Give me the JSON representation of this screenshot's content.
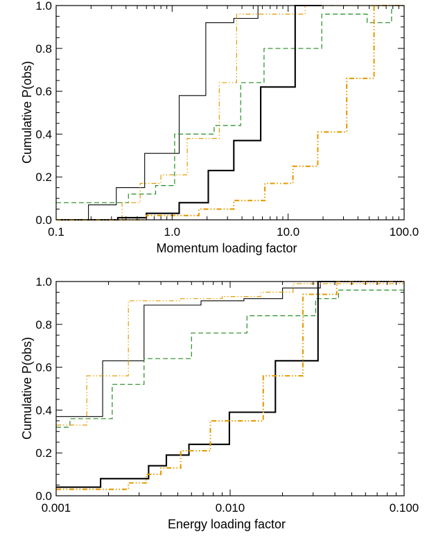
{
  "chart_data": [
    {
      "type": "line",
      "step": true,
      "xscale": "log",
      "xlabel": "Momentum loading factor",
      "ylabel": "Cumulative P(obs)",
      "xlim": [
        0.1,
        100.0
      ],
      "ylim": [
        0.0,
        1.0
      ],
      "x_tick_labels": [
        "0.1",
        "1.0",
        "10.0",
        "100.0"
      ],
      "y_tick_labels": [
        "0.0",
        "0.2",
        "0.4",
        "0.6",
        "0.8",
        "1.0"
      ],
      "series": [
        {
          "style": "thin-solid",
          "color": "#000000",
          "points": [
            [
              0.1,
              0.0
            ],
            [
              0.19,
              0.0
            ],
            [
              0.19,
              0.07
            ],
            [
              0.33,
              0.07
            ],
            [
              0.33,
              0.15
            ],
            [
              0.58,
              0.15
            ],
            [
              0.58,
              0.31
            ],
            [
              1.15,
              0.31
            ],
            [
              1.15,
              0.58
            ],
            [
              1.95,
              0.58
            ],
            [
              1.95,
              0.92
            ],
            [
              3.4,
              0.92
            ],
            [
              3.4,
              0.94
            ],
            [
              5.5,
              0.94
            ],
            [
              5.5,
              1.0
            ],
            [
              100,
              1.0
            ]
          ]
        },
        {
          "style": "dashed",
          "color": "#228b22",
          "points": [
            [
              0.1,
              0.08
            ],
            [
              0.42,
              0.08
            ],
            [
              0.42,
              0.12
            ],
            [
              0.72,
              0.12
            ],
            [
              0.72,
              0.16
            ],
            [
              1.05,
              0.16
            ],
            [
              1.05,
              0.4
            ],
            [
              2.3,
              0.4
            ],
            [
              2.3,
              0.44
            ],
            [
              3.9,
              0.44
            ],
            [
              3.9,
              0.64
            ],
            [
              6.2,
              0.64
            ],
            [
              6.2,
              0.8
            ],
            [
              19.5,
              0.8
            ],
            [
              19.5,
              0.96
            ],
            [
              48,
              0.96
            ],
            [
              48,
              0.92
            ],
            [
              78,
              0.92
            ],
            [
              78,
              1.0
            ],
            [
              100,
              1.0
            ]
          ]
        },
        {
          "style": "thin-dash-dot-dot",
          "color": "#e69a00",
          "points": [
            [
              0.1,
              0.0
            ],
            [
              0.37,
              0.0
            ],
            [
              0.37,
              0.08
            ],
            [
              0.53,
              0.08
            ],
            [
              0.53,
              0.17
            ],
            [
              0.8,
              0.17
            ],
            [
              0.8,
              0.21
            ],
            [
              1.35,
              0.21
            ],
            [
              1.35,
              0.38
            ],
            [
              2.55,
              0.38
            ],
            [
              2.55,
              0.64
            ],
            [
              3.6,
              0.64
            ],
            [
              3.6,
              0.96
            ],
            [
              14,
              0.96
            ],
            [
              14,
              1.0
            ],
            [
              100,
              1.0
            ]
          ]
        },
        {
          "style": "thick-solid",
          "color": "#000000",
          "points": [
            [
              0.1,
              0.0
            ],
            [
              0.34,
              0.0
            ],
            [
              0.34,
              0.01
            ],
            [
              0.6,
              0.01
            ],
            [
              0.6,
              0.03
            ],
            [
              1.15,
              0.03
            ],
            [
              1.15,
              0.08
            ],
            [
              2.05,
              0.08
            ],
            [
              2.05,
              0.23
            ],
            [
              3.4,
              0.23
            ],
            [
              3.4,
              0.37
            ],
            [
              5.8,
              0.37
            ],
            [
              5.8,
              0.62
            ],
            [
              11.5,
              0.62
            ],
            [
              11.5,
              1.0
            ],
            [
              19.5,
              1.0
            ]
          ]
        },
        {
          "style": "thick-dash-dot-dot",
          "color": "#e69a00",
          "points": [
            [
              0.1,
              0.0
            ],
            [
              0.6,
              0.0
            ],
            [
              0.6,
              0.02
            ],
            [
              1.7,
              0.02
            ],
            [
              1.7,
              0.05
            ],
            [
              3.4,
              0.05
            ],
            [
              3.4,
              0.09
            ],
            [
              6.3,
              0.09
            ],
            [
              6.3,
              0.17
            ],
            [
              11,
              0.17
            ],
            [
              11,
              0.25
            ],
            [
              18,
              0.25
            ],
            [
              18,
              0.41
            ],
            [
              32,
              0.41
            ],
            [
              32,
              0.66
            ],
            [
              55,
              0.66
            ],
            [
              55,
              1.0
            ],
            [
              100,
              1.0
            ]
          ]
        }
      ]
    },
    {
      "type": "line",
      "step": true,
      "xscale": "log",
      "xlabel": "Energy loading factor",
      "ylabel": "Cumulative P(obs)",
      "xlim": [
        0.001,
        0.1
      ],
      "ylim": [
        0.0,
        1.0
      ],
      "x_tick_labels": [
        "0.001",
        "0.010",
        "0.100"
      ],
      "y_tick_labels": [
        "0.0",
        "0.2",
        "0.4",
        "0.6",
        "0.8",
        "1.0"
      ],
      "series": [
        {
          "style": "thin-solid",
          "color": "#000000",
          "points": [
            [
              0.001,
              0.37
            ],
            [
              0.00185,
              0.37
            ],
            [
              0.00185,
              0.63
            ],
            [
              0.0032,
              0.63
            ],
            [
              0.0032,
              0.89
            ],
            [
              0.0068,
              0.89
            ],
            [
              0.0068,
              0.91
            ],
            [
              0.012,
              0.91
            ],
            [
              0.012,
              0.92
            ],
            [
              0.02,
              0.92
            ],
            [
              0.02,
              0.97
            ],
            [
              0.033,
              0.97
            ],
            [
              0.033,
              1.0
            ],
            [
              0.1,
              1.0
            ]
          ]
        },
        {
          "style": "dashed",
          "color": "#228b22",
          "points": [
            [
              0.001,
              0.32
            ],
            [
              0.0012,
              0.32
            ],
            [
              0.0012,
              0.36
            ],
            [
              0.0021,
              0.36
            ],
            [
              0.0021,
              0.52
            ],
            [
              0.0032,
              0.52
            ],
            [
              0.0032,
              0.64
            ],
            [
              0.006,
              0.64
            ],
            [
              0.006,
              0.76
            ],
            [
              0.0125,
              0.76
            ],
            [
              0.0125,
              0.84
            ],
            [
              0.031,
              0.84
            ],
            [
              0.031,
              0.92
            ],
            [
              0.042,
              0.92
            ],
            [
              0.042,
              0.96
            ],
            [
              0.1,
              0.96
            ]
          ]
        },
        {
          "style": "thin-dash-dot-dot",
          "color": "#e69a00",
          "points": [
            [
              0.001,
              0.33
            ],
            [
              0.0015,
              0.33
            ],
            [
              0.0015,
              0.56
            ],
            [
              0.0026,
              0.56
            ],
            [
              0.0026,
              0.91
            ],
            [
              0.0052,
              0.91
            ],
            [
              0.0052,
              0.92
            ],
            [
              0.009,
              0.92
            ],
            [
              0.009,
              0.93
            ],
            [
              0.015,
              0.93
            ],
            [
              0.015,
              0.95
            ],
            [
              0.023,
              0.95
            ],
            [
              0.023,
              0.99
            ],
            [
              0.1,
              0.99
            ]
          ]
        },
        {
          "style": "thick-solid",
          "color": "#000000",
          "points": [
            [
              0.001,
              0.04
            ],
            [
              0.0018,
              0.04
            ],
            [
              0.0018,
              0.08
            ],
            [
              0.0034,
              0.08
            ],
            [
              0.0034,
              0.14
            ],
            [
              0.0043,
              0.14
            ],
            [
              0.0043,
              0.19
            ],
            [
              0.0058,
              0.19
            ],
            [
              0.0058,
              0.24
            ],
            [
              0.0099,
              0.24
            ],
            [
              0.0099,
              0.39
            ],
            [
              0.0182,
              0.39
            ],
            [
              0.0182,
              0.63
            ],
            [
              0.032,
              0.63
            ],
            [
              0.032,
              1.0
            ],
            [
              0.1,
              1.0
            ]
          ]
        },
        {
          "style": "thick-dash-dot-dot",
          "color": "#e69a00",
          "points": [
            [
              0.001,
              0.03
            ],
            [
              0.0026,
              0.03
            ],
            [
              0.0026,
              0.06
            ],
            [
              0.0033,
              0.06
            ],
            [
              0.0033,
              0.1
            ],
            [
              0.004,
              0.1
            ],
            [
              0.004,
              0.13
            ],
            [
              0.0052,
              0.13
            ],
            [
              0.0052,
              0.21
            ],
            [
              0.0077,
              0.21
            ],
            [
              0.0077,
              0.35
            ],
            [
              0.0155,
              0.35
            ],
            [
              0.0155,
              0.56
            ],
            [
              0.0262,
              0.56
            ],
            [
              0.0262,
              0.94
            ],
            [
              0.041,
              0.94
            ],
            [
              0.041,
              1.0
            ],
            [
              0.1,
              1.0
            ]
          ]
        }
      ]
    }
  ]
}
